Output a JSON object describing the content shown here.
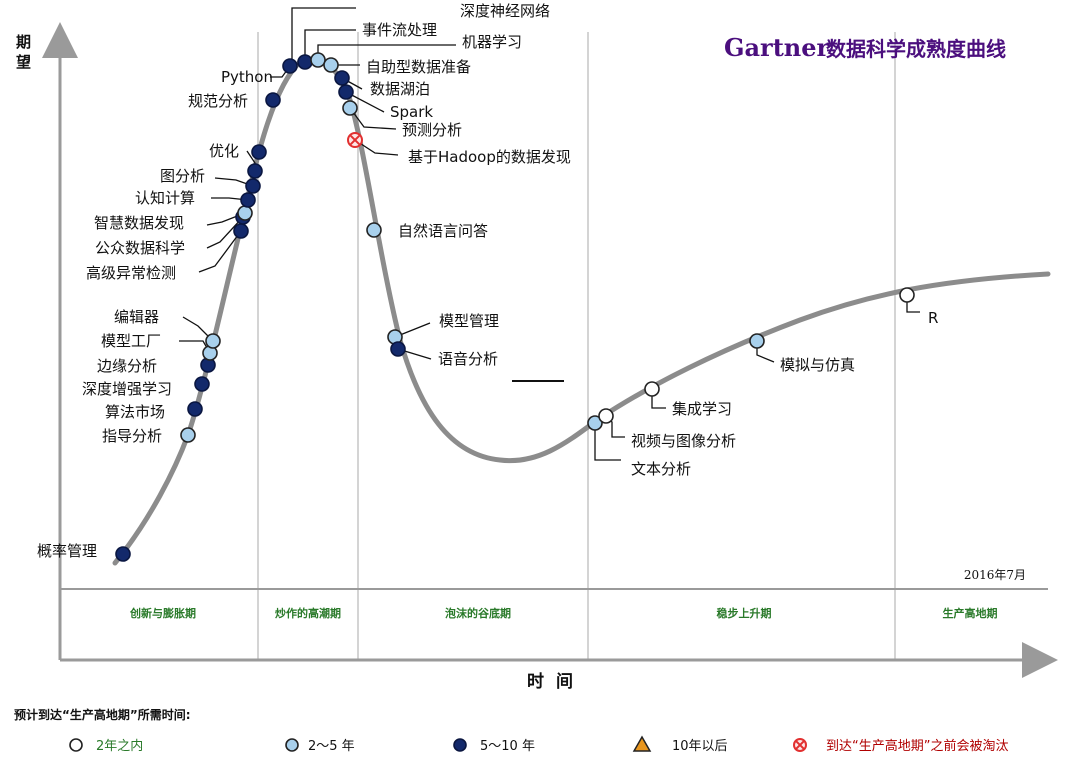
{
  "chart_data": {
    "type": "scatter",
    "title_brand": "Gartner",
    "title": "数据科学成熟度曲线",
    "date": "2016年7月",
    "ylabel": "期望",
    "xlabel": "时间",
    "phases": [
      "创新与膨胀期",
      "炒作的高潮期",
      "泡沫的谷底期",
      "稳步上升期",
      "生产高地期"
    ],
    "legend_title": "预计到达“生产高地期”所需时间:",
    "legend": [
      {
        "key": "lt2",
        "label": "2年之内"
      },
      {
        "key": "2to5",
        "label": "2～5 年"
      },
      {
        "key": "5to10",
        "label": "5～10 年"
      },
      {
        "key": "gt10",
        "label": "10年以后"
      },
      {
        "key": "obsolete",
        "label": "到达“生产高地期”之前会被淘汰"
      }
    ],
    "colors": {
      "lt2": "#ffffff",
      "2to5": "#a8d0ec",
      "5to10": "#13296b",
      "gt10": "#e8961e",
      "obsolete": "#e23030",
      "curve": "#8c8c8c",
      "title": "#4b0f7e",
      "phase_label": "#2a7a2a"
    },
    "points": [
      {
        "name": "概率管理",
        "category": "5to10"
      },
      {
        "name": "指导分析",
        "category": "2to5"
      },
      {
        "name": "算法市场",
        "category": "5to10"
      },
      {
        "name": "深度增强学习",
        "category": "5to10"
      },
      {
        "name": "边缘分析",
        "category": "5to10"
      },
      {
        "name": "模型工厂",
        "category": "2to5"
      },
      {
        "name": "编辑器",
        "category": "2to5"
      },
      {
        "name": "高级异常检测",
        "category": "5to10"
      },
      {
        "name": "公众数据科学",
        "category": "5to10"
      },
      {
        "name": "智慧数据发现",
        "category": "2to5"
      },
      {
        "name": "认知计算",
        "category": "5to10"
      },
      {
        "name": "图分析",
        "category": "5to10"
      },
      {
        "name": "优化",
        "category": "5to10"
      },
      {
        "name": "规范分析",
        "category": "5to10"
      },
      {
        "name": "Python",
        "category": "5to10"
      },
      {
        "name": "事件流处理",
        "category": "5to10"
      },
      {
        "name": "深度神经网络",
        "category": "5to10"
      },
      {
        "name": "机器学习",
        "category": "2to5"
      },
      {
        "name": "自助型数据准备",
        "category": "2to5"
      },
      {
        "name": "数据湖泊",
        "category": "5to10"
      },
      {
        "name": "Spark",
        "category": "5to10"
      },
      {
        "name": "预测分析",
        "category": "2to5"
      },
      {
        "name": "基于Hadoop的数据发现",
        "category": "obsolete"
      },
      {
        "name": "自然语言问答",
        "category": "2to5"
      },
      {
        "name": "模型管理",
        "category": "2to5"
      },
      {
        "name": "语音分析",
        "category": "5to10"
      },
      {
        "name": "文本分析",
        "category": "2to5"
      },
      {
        "name": "视频与图像分析",
        "category": "lt2"
      },
      {
        "name": "集成学习",
        "category": "lt2"
      },
      {
        "name": "模拟与仿真",
        "category": "2to5"
      },
      {
        "name": "R",
        "category": "lt2"
      }
    ]
  }
}
